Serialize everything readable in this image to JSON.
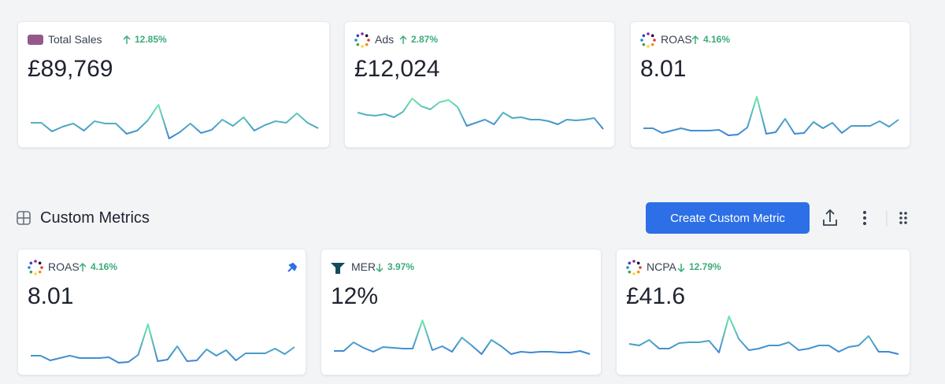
{
  "header": {
    "title": "Custom Metrics",
    "button": "Create Custom Metric"
  },
  "pinned_cards": [
    {
      "icon": "woo",
      "label": "Total Sales",
      "direction": "up",
      "change": "12.85%",
      "value": "£89,769",
      "sparkline": [
        30,
        30,
        19,
        25,
        29,
        20,
        32,
        29,
        29,
        16,
        20,
        33,
        53,
        10,
        18,
        29,
        17,
        21,
        34,
        26,
        37,
        20,
        27,
        32,
        30,
        42,
        30,
        23
      ]
    },
    {
      "icon": "dots",
      "label": "Ads",
      "direction": "up",
      "change": "2.87%",
      "value": "£12,024",
      "sparkline": [
        43,
        40,
        39,
        41,
        37,
        44,
        61,
        51,
        47,
        56,
        59,
        50,
        26,
        30,
        34,
        28,
        43,
        36,
        37,
        34,
        34,
        32,
        28,
        34,
        33,
        34,
        36,
        22
      ]
    },
    {
      "icon": "dots",
      "label": "ROAS",
      "direction": "up",
      "change": "4.16%",
      "value": "8.01",
      "sparkline": [
        23,
        23,
        17,
        20,
        23,
        20,
        20,
        20,
        21,
        14,
        15,
        24,
        63,
        16,
        18,
        35,
        16,
        17,
        31,
        23,
        30,
        17,
        26,
        26,
        26,
        32,
        25,
        34
      ]
    }
  ],
  "custom_cards": [
    {
      "icon": "dots",
      "label": "ROAS",
      "direction": "up",
      "change": "4.16%",
      "value": "8.01",
      "pinned": true,
      "sparkline": [
        23,
        23,
        17,
        20,
        23,
        20,
        20,
        20,
        21,
        14,
        15,
        24,
        63,
        16,
        18,
        35,
        16,
        17,
        31,
        23,
        30,
        17,
        26,
        26,
        26,
        32,
        25,
        34
      ]
    },
    {
      "icon": "mer",
      "label": "MER",
      "direction": "down",
      "change": "3.97%",
      "value": "12%",
      "sparkline": [
        29,
        29,
        40,
        33,
        28,
        34,
        33,
        32,
        32,
        68,
        30,
        35,
        28,
        46,
        36,
        25,
        43,
        35,
        25,
        28,
        27,
        28,
        28,
        27,
        27,
        29,
        25
      ]
    },
    {
      "icon": "dots",
      "label": "NCPA",
      "direction": "down",
      "change": "12.79%",
      "value": "£41.6",
      "sparkline": [
        38,
        36,
        43,
        32,
        32,
        39,
        40,
        40,
        42,
        27,
        73,
        44,
        30,
        32,
        36,
        36,
        40,
        30,
        32,
        36,
        36,
        28,
        34,
        36,
        48,
        28,
        28,
        25
      ]
    }
  ]
}
